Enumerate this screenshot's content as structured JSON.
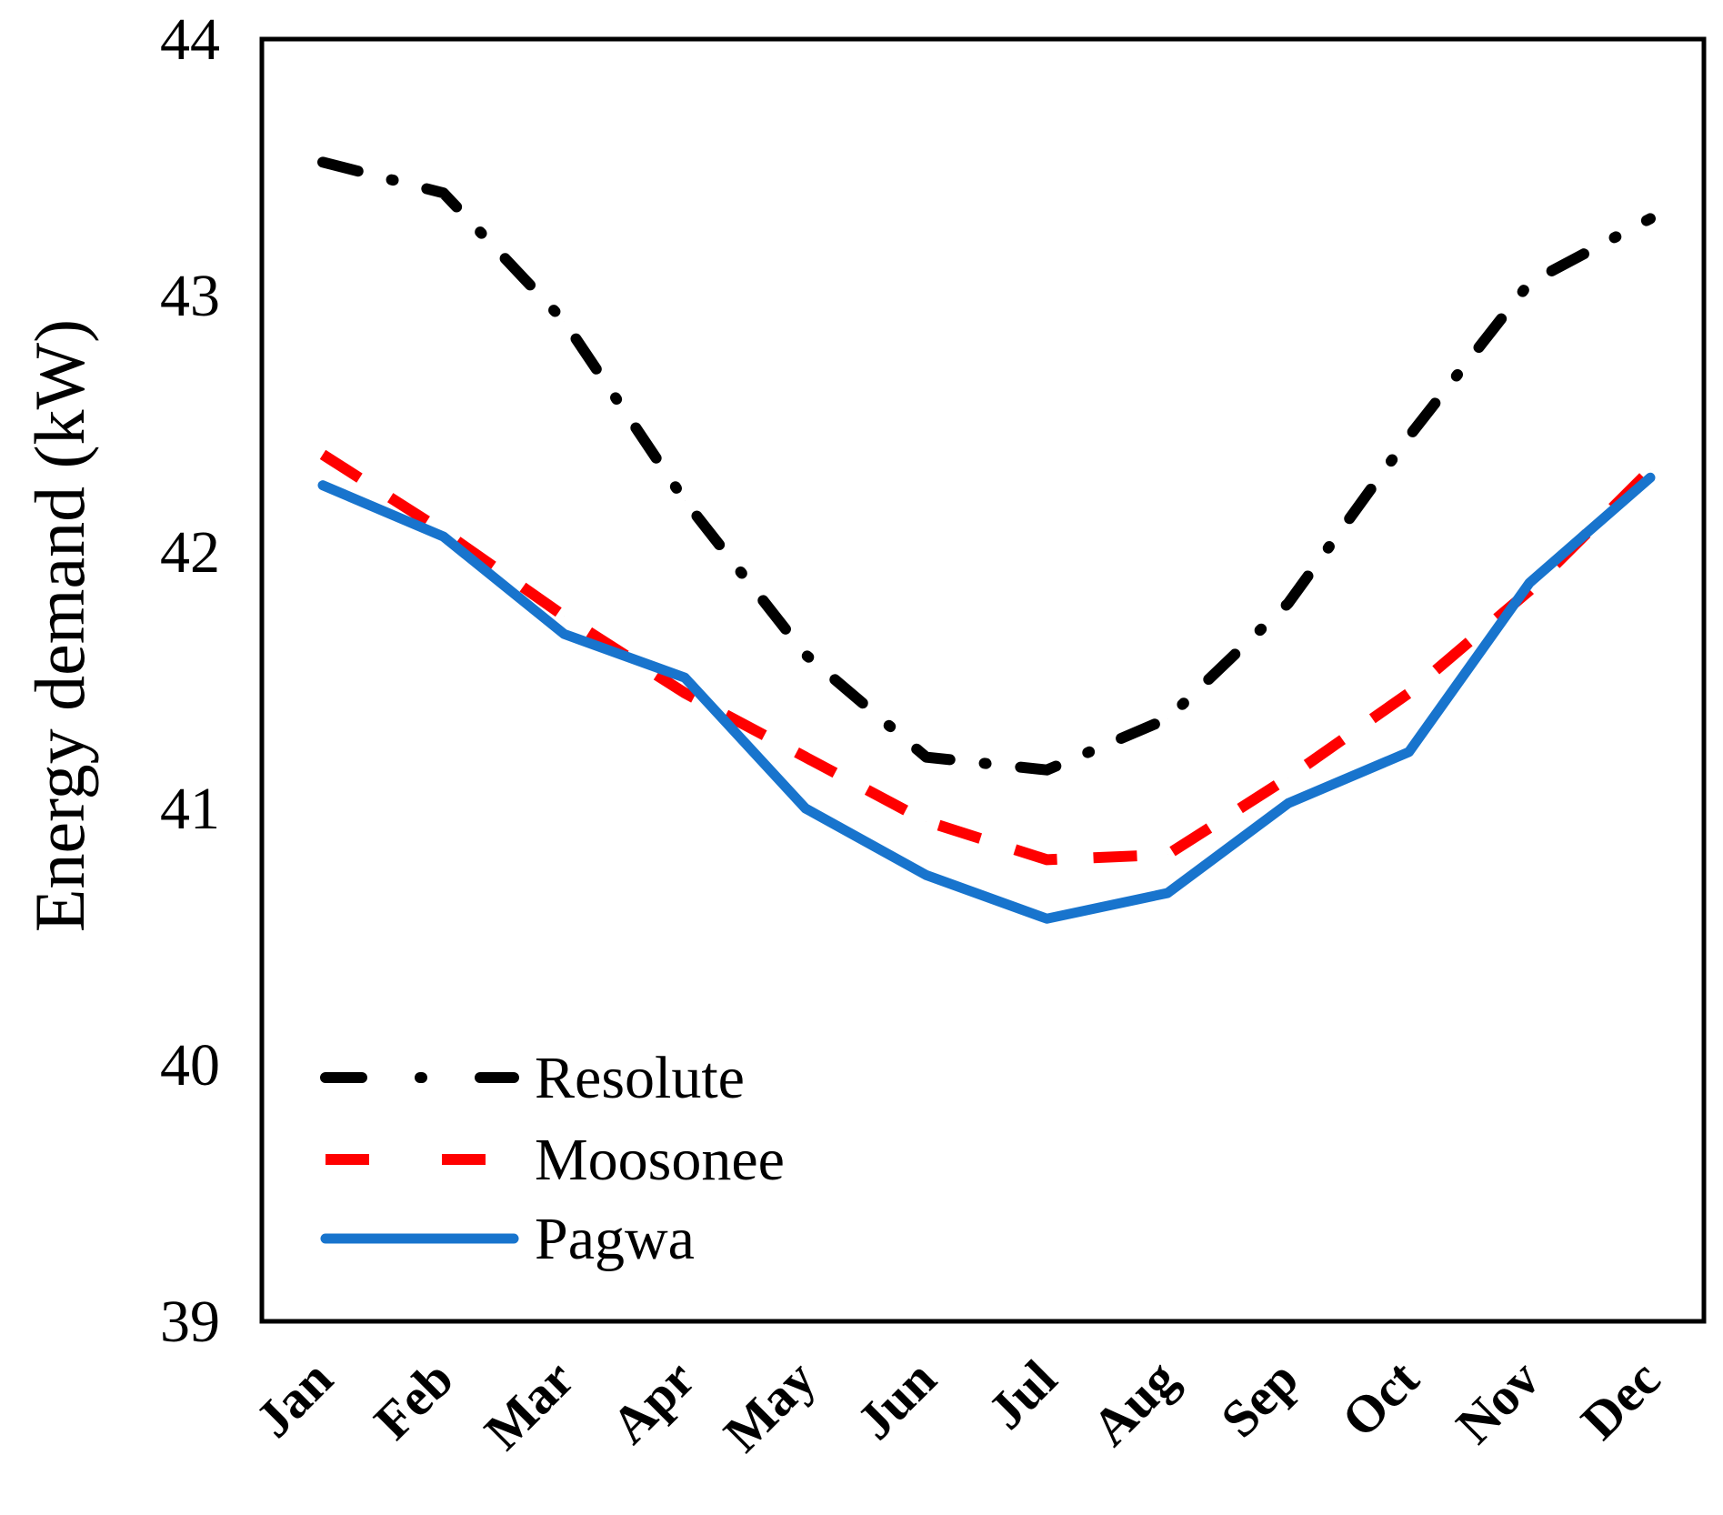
{
  "chart_data": {
    "type": "line",
    "title": "",
    "xlabel": "",
    "ylabel": "Energy demand (kW)",
    "ylim": [
      39,
      44
    ],
    "yticks": [
      "39",
      "40",
      "41",
      "42",
      "43",
      "44"
    ],
    "categories": [
      "Jan",
      "Feb",
      "Mar",
      "Apr",
      "May",
      "Jun",
      "Jul",
      "Aug",
      "Sep",
      "Oct",
      "Nov",
      "Dec"
    ],
    "grid": false,
    "legend_position": "bottom-left",
    "series": [
      {
        "name": "Resolute",
        "color": "#000000",
        "style": "dash-dot",
        "values": [
          43.52,
          43.4,
          42.9,
          42.2,
          41.6,
          41.2,
          41.15,
          41.35,
          41.8,
          42.45,
          43.05,
          43.3
        ]
      },
      {
        "name": "Moosonee",
        "color": "#ff0000",
        "style": "dashed",
        "values": [
          42.38,
          42.08,
          41.75,
          41.45,
          41.2,
          40.95,
          40.8,
          40.82,
          41.12,
          41.45,
          41.85,
          42.32
        ]
      },
      {
        "name": "Pagwa",
        "color": "#1874cd",
        "style": "solid",
        "values": [
          42.26,
          42.06,
          41.68,
          41.51,
          41.0,
          40.74,
          40.57,
          40.67,
          41.02,
          41.22,
          41.88,
          42.29
        ]
      }
    ]
  }
}
